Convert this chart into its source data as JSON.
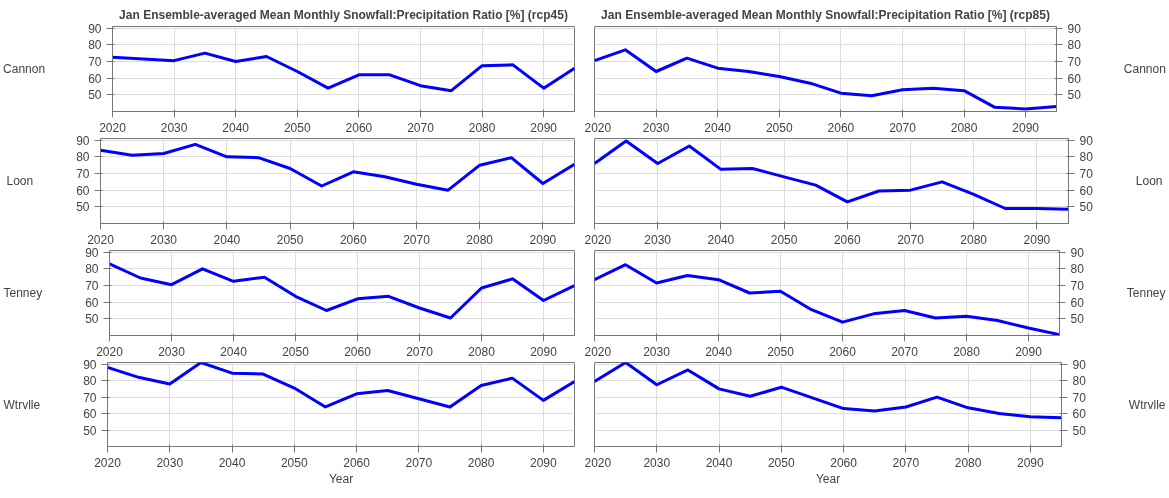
{
  "chart_data": [
    {
      "type": "line",
      "title": "Jan Ensemble-averaged Mean Monthly Snowfall:Precipitation Ratio [%] (rcp45)",
      "ylabel": "Cannon",
      "x": [
        2020,
        2025,
        2030,
        2035,
        2040,
        2045,
        2050,
        2055,
        2060,
        2065,
        2070,
        2075,
        2080,
        2085,
        2090,
        2095
      ],
      "xlim": [
        2020,
        2095
      ],
      "xticks": [
        2020,
        2030,
        2040,
        2050,
        2060,
        2070,
        2080,
        2090
      ],
      "ylim": [
        40,
        91
      ],
      "yticks": [
        50,
        60,
        70,
        80,
        90
      ],
      "grid": true,
      "line_style": "solid",
      "series": [
        {
          "color": "#0000ff",
          "values": [
            72.5,
            71.5,
            70.5,
            75,
            70,
            73,
            64,
            54,
            62,
            62,
            55.5,
            52.5,
            67.5,
            68,
            54,
            66
          ]
        }
      ]
    },
    {
      "type": "line",
      "title": "Jan Ensemble-averaged Mean Monthly Snowfall:Precipitation Ratio [%] (rcp85)",
      "y2label": "Cannon",
      "x": [
        2020,
        2025,
        2030,
        2035,
        2040,
        2045,
        2050,
        2055,
        2060,
        2065,
        2070,
        2075,
        2080,
        2085,
        2090,
        2095
      ],
      "xlim": [
        2020,
        2095
      ],
      "xticks": [
        2020,
        2030,
        2040,
        2050,
        2060,
        2070,
        2080,
        2090
      ],
      "y2lim": [
        40,
        91
      ],
      "y2ticks": [
        50,
        60,
        70,
        80,
        90
      ],
      "grid": true,
      "line_style": "solid",
      "series": [
        {
          "color": "#0000ff",
          "axis": "y2",
          "values": [
            70.5,
            77,
            64,
            72,
            66,
            64,
            61,
            57,
            51,
            49.5,
            53,
            54,
            52.5,
            42.5,
            41.5,
            43
          ]
        }
      ]
    },
    {
      "type": "line",
      "ylabel": "Loon",
      "x": [
        2020,
        2025,
        2030,
        2035,
        2040,
        2045,
        2050,
        2055,
        2060,
        2065,
        2070,
        2075,
        2080,
        2085,
        2090,
        2095
      ],
      "xlim": [
        2020,
        2095
      ],
      "xticks": [
        2020,
        2030,
        2040,
        2050,
        2060,
        2070,
        2080,
        2090
      ],
      "ylim": [
        40,
        91
      ],
      "yticks": [
        50,
        60,
        70,
        80,
        90
      ],
      "grid": true,
      "line_style": "solid",
      "series": [
        {
          "color": "#0000ff",
          "values": [
            84,
            81,
            82,
            87.5,
            80,
            79.5,
            73,
            62.5,
            71,
            68,
            63.5,
            60,
            75,
            79.5,
            64,
            75.5
          ]
        }
      ]
    },
    {
      "type": "line",
      "y2label": "Loon",
      "x": [
        2020,
        2025,
        2030,
        2035,
        2040,
        2045,
        2050,
        2055,
        2060,
        2065,
        2070,
        2075,
        2080,
        2085,
        2090,
        2095
      ],
      "xlim": [
        2020,
        2095
      ],
      "xticks": [
        2020,
        2030,
        2040,
        2050,
        2060,
        2070,
        2080,
        2090
      ],
      "y2lim": [
        40,
        91
      ],
      "y2ticks": [
        50,
        60,
        70,
        80,
        90
      ],
      "grid": true,
      "line_style": "solid",
      "series": [
        {
          "color": "#0000ff",
          "axis": "y2",
          "values": [
            76,
            89.5,
            76,
            86.5,
            72.5,
            73,
            68,
            63,
            53,
            59.5,
            60,
            65,
            57.5,
            49,
            49,
            48.5
          ]
        }
      ]
    },
    {
      "type": "line",
      "ylabel": "Tenney",
      "x": [
        2020,
        2025,
        2030,
        2035,
        2040,
        2045,
        2050,
        2055,
        2060,
        2065,
        2070,
        2075,
        2080,
        2085,
        2090,
        2095
      ],
      "xlim": [
        2020,
        2095
      ],
      "xticks": [
        2020,
        2030,
        2040,
        2050,
        2060,
        2070,
        2080,
        2090
      ],
      "ylim": [
        40,
        91
      ],
      "yticks": [
        50,
        60,
        70,
        80,
        90
      ],
      "grid": true,
      "line_style": "solid",
      "series": [
        {
          "color": "#0000ff",
          "values": [
            83,
            74.5,
            70.5,
            80,
            72.5,
            75,
            63.5,
            55,
            62,
            63.5,
            56.5,
            50.5,
            68.5,
            74,
            61,
            70
          ]
        }
      ]
    },
    {
      "type": "line",
      "y2label": "Tenney",
      "x": [
        2020,
        2025,
        2030,
        2035,
        2040,
        2045,
        2050,
        2055,
        2060,
        2065,
        2070,
        2075,
        2080,
        2085,
        2090,
        2095
      ],
      "xlim": [
        2020,
        2095
      ],
      "xticks": [
        2020,
        2030,
        2040,
        2050,
        2060,
        2070,
        2080,
        2090
      ],
      "y2lim": [
        40,
        91
      ],
      "y2ticks": [
        50,
        60,
        70,
        80,
        90
      ],
      "grid": true,
      "line_style": "solid",
      "series": [
        {
          "color": "#0000ff",
          "axis": "y2",
          "values": [
            73.5,
            82.5,
            71.5,
            76,
            73.5,
            65.5,
            66.5,
            55.5,
            48,
            53,
            55,
            50.5,
            51.5,
            49,
            44.5,
            40.5
          ]
        }
      ]
    },
    {
      "type": "line",
      "ylabel": "Wtrvlle",
      "xlabel": "Year",
      "x": [
        2020,
        2025,
        2030,
        2035,
        2040,
        2045,
        2050,
        2055,
        2060,
        2065,
        2070,
        2075,
        2080,
        2085,
        2090,
        2095
      ],
      "xlim": [
        2020,
        2095
      ],
      "xticks": [
        2020,
        2030,
        2040,
        2050,
        2060,
        2070,
        2080,
        2090
      ],
      "ylim": [
        40,
        91
      ],
      "yticks": [
        50,
        60,
        70,
        80,
        90
      ],
      "grid": true,
      "line_style": "solid",
      "series": [
        {
          "color": "#0000ff",
          "values": [
            88,
            82,
            78,
            91,
            84.5,
            84,
            75.5,
            64,
            72,
            74,
            69,
            64,
            77,
            81.5,
            68,
            79.5
          ]
        }
      ]
    },
    {
      "type": "line",
      "y2label": "Wtrvlle",
      "xlabel": "Year",
      "x": [
        2020,
        2025,
        2030,
        2035,
        2040,
        2045,
        2050,
        2055,
        2060,
        2065,
        2070,
        2075,
        2080,
        2085,
        2090,
        2095
      ],
      "xlim": [
        2020,
        2095
      ],
      "xticks": [
        2020,
        2030,
        2040,
        2050,
        2060,
        2070,
        2080,
        2090
      ],
      "y2lim": [
        40,
        91
      ],
      "y2ticks": [
        50,
        60,
        70,
        80,
        90
      ],
      "grid": true,
      "line_style": "solid",
      "series": [
        {
          "color": "#0000ff",
          "axis": "y2",
          "values": [
            79.5,
            91,
            77.5,
            86.5,
            75,
            70.5,
            76,
            69.5,
            63,
            61.5,
            64,
            70,
            63.5,
            60,
            58,
            57.5
          ]
        }
      ]
    }
  ]
}
